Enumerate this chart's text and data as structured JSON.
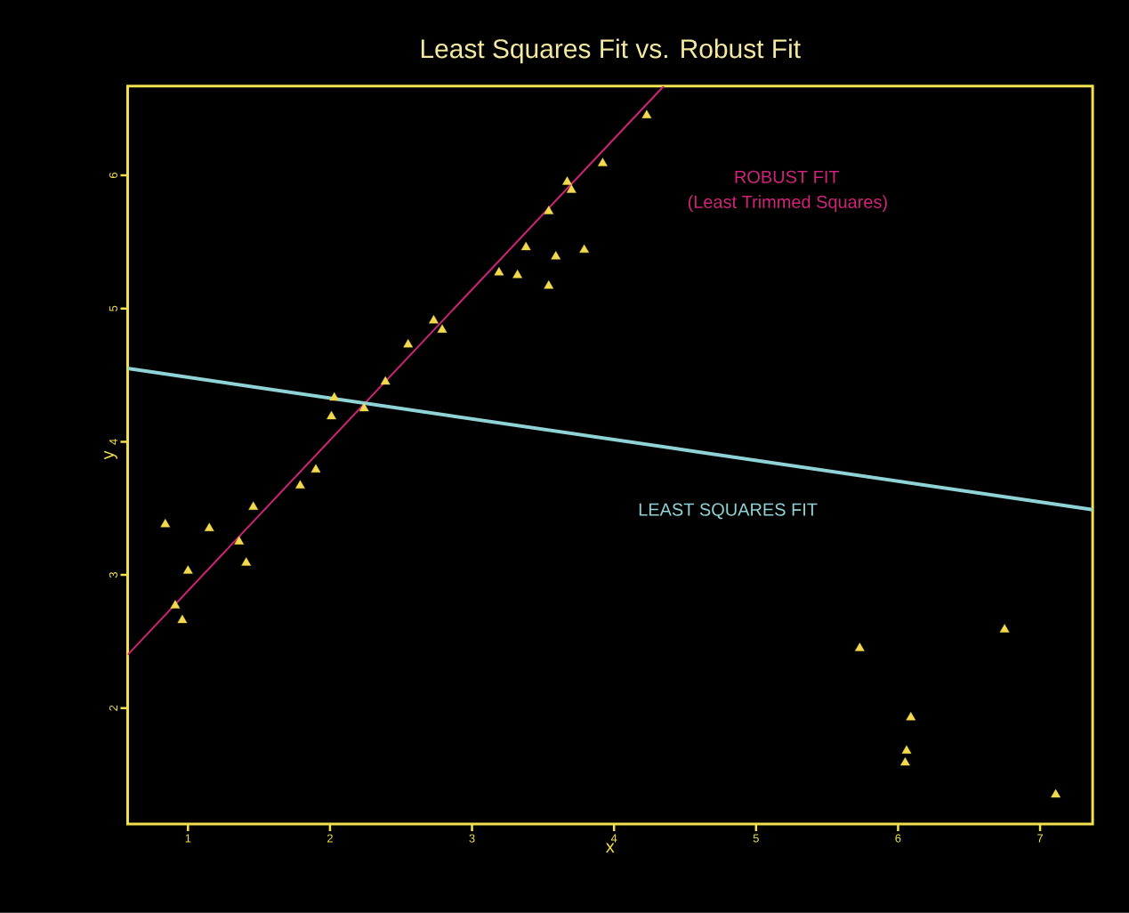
{
  "chart_data": {
    "type": "scatter",
    "title": "Least Squares Fit vs. Robust Fit",
    "xlabel": "x",
    "ylabel": "y",
    "xlim": [
      0.575,
      7.37
    ],
    "ylim": [
      1.13,
      6.67
    ],
    "xticks": [
      1,
      2,
      3,
      4,
      5,
      6,
      7
    ],
    "yticks": [
      2,
      3,
      4,
      5,
      6
    ],
    "grid": false,
    "series": [
      {
        "marker": "triangle",
        "color": "#f2d94e",
        "x": [
          0.84,
          0.91,
          0.96,
          1.0,
          1.15,
          1.36,
          1.41,
          1.46,
          1.79,
          1.9,
          2.01,
          2.03,
          2.24,
          2.39,
          2.55,
          2.73,
          2.79,
          3.19,
          3.32,
          3.38,
          3.54,
          3.54,
          3.59,
          3.67,
          3.7,
          3.79,
          3.92,
          4.23,
          5.73,
          6.09,
          6.06,
          6.05,
          6.75,
          7.11
        ],
        "values": [
          3.38,
          2.77,
          2.66,
          3.03,
          3.35,
          3.25,
          3.09,
          3.51,
          3.67,
          3.79,
          4.19,
          4.33,
          4.25,
          4.45,
          4.73,
          4.91,
          4.84,
          5.27,
          5.25,
          5.46,
          5.17,
          5.73,
          5.39,
          5.95,
          5.89,
          5.44,
          6.09,
          6.45,
          2.45,
          1.93,
          1.68,
          1.59,
          2.59,
          1.35
        ]
      },
      {
        "type": "line",
        "marker": "none",
        "line_style": "solid",
        "color": "#d0237a",
        "x": [
          0.575,
          4.35
        ],
        "values": [
          2.4,
          6.67
        ]
      },
      {
        "type": "line",
        "marker": "none",
        "line_style": "solid",
        "color": "#8fd3d6",
        "x": [
          0.575,
          7.37
        ],
        "values": [
          4.55,
          3.49
        ]
      }
    ],
    "annotations": [
      "ROBUST FIT",
      "(Least Trimmed Squares)",
      "LEAST SQUARES FIT"
    ]
  }
}
